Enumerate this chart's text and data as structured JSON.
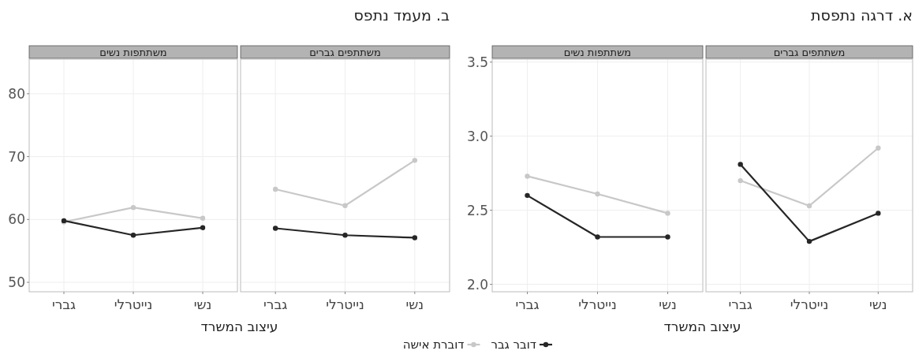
{
  "chart_data": [
    {
      "type": "line",
      "title": "משתתפים גברים",
      "annotations": [
        "א. דרגה נתפסת"
      ],
      "categories": [
        "גברי",
        "נייטרלי",
        "נשי"
      ],
      "ylim": [
        1.95,
        3.52
      ],
      "tick_labels": "x",
      "grid": true,
      "marker": "circle",
      "legend": "bottom",
      "series": [
        {
          "name": "דובר גבר",
          "color": "#262626",
          "values": [
            2.81,
            2.29,
            2.48
          ]
        },
        {
          "name": "דוברת אישה",
          "color": "#c8c8c8",
          "values": [
            2.7,
            2.53,
            2.92
          ]
        }
      ]
    },
    {
      "type": "line",
      "title": "משתתפות נשים",
      "xlabel": "עיצוב המשרד",
      "categories": [
        "גברי",
        "נייטרלי",
        "נשי"
      ],
      "ylim": [
        1.95,
        3.52
      ],
      "yticks": [
        {
          "value": 2,
          "label": "2.0"
        },
        2.5,
        {
          "value": 3,
          "label": "3.0"
        },
        3.5
      ],
      "grid": true,
      "marker": "circle",
      "series": [
        {
          "color": "#262626",
          "values": [
            2.6,
            2.32,
            2.32
          ]
        },
        {
          "color": "#c8c8c8",
          "values": [
            2.73,
            2.61,
            2.48
          ]
        }
      ]
    },
    {
      "type": "line",
      "title": "משתתפים גברים",
      "annotations": [
        "ב. מעמד נתפס"
      ],
      "categories": [
        "גברי",
        "נייטרלי",
        "נשי"
      ],
      "ylim": [
        48.5,
        85.5
      ],
      "tick_labels": "x",
      "grid": true,
      "marker": "circle",
      "series": [
        {
          "color": "#262626",
          "values": [
            58.6,
            57.5,
            57.1
          ]
        },
        {
          "color": "#c8c8c8",
          "values": [
            64.8,
            62.2,
            69.4
          ]
        }
      ]
    },
    {
      "type": "line",
      "title": "משתתפות נשים",
      "xlabel": "עיצוב המשרד",
      "categories": [
        "גברי",
        "נייטרלי",
        "נשי"
      ],
      "ylim": [
        48.5,
        85.5
      ],
      "yticks": [
        50,
        60,
        70,
        80
      ],
      "grid": true,
      "marker": "circle",
      "series": [
        {
          "color": "#262626",
          "values": [
            59.8,
            57.5,
            58.7
          ]
        },
        {
          "color": "#c8c8c8",
          "values": [
            59.6,
            61.9,
            60.2
          ]
        }
      ]
    }
  ]
}
